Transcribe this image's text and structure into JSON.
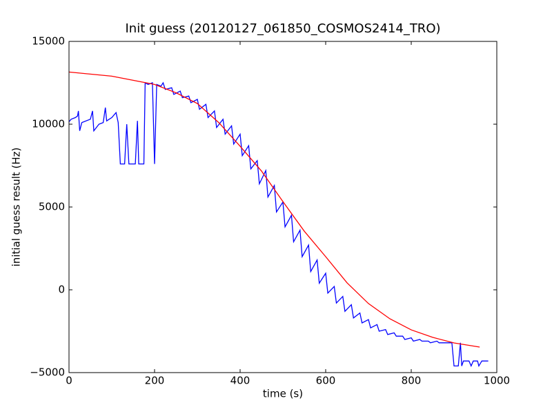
{
  "chart_data": {
    "type": "line",
    "title": "Init guess (20120127_061850_COSMOS2414_TRO)",
    "xlabel": "time (s)",
    "ylabel": "initial guess result (Hz)",
    "xlim": [
      0,
      1000
    ],
    "xticks": [
      0,
      200,
      400,
      600,
      800,
      1000
    ],
    "ylim": [
      -5000,
      15000
    ],
    "yticks": [
      {
        "value": -5000,
        "label": "−5000"
      },
      0,
      5000,
      10000,
      15000
    ],
    "grid": false,
    "series": [
      {
        "color": "#0000ff",
        "x": [
          0,
          5,
          15,
          20,
          22,
          25,
          30,
          50,
          55,
          58,
          70,
          80,
          85,
          88,
          100,
          110,
          115,
          120,
          130,
          135,
          140,
          155,
          160,
          163,
          175,
          178,
          185,
          195,
          200,
          205,
          215,
          220,
          225,
          240,
          245,
          260,
          265,
          280,
          285,
          300,
          305,
          320,
          325,
          340,
          345,
          360,
          365,
          380,
          385,
          400,
          405,
          420,
          425,
          440,
          445,
          460,
          465,
          480,
          485,
          500,
          505,
          520,
          525,
          540,
          545,
          560,
          565,
          580,
          585,
          600,
          605,
          620,
          625,
          640,
          645,
          660,
          665,
          680,
          685,
          700,
          705,
          720,
          725,
          740,
          745,
          760,
          765,
          780,
          785,
          800,
          805,
          820,
          825,
          840,
          845,
          860,
          865,
          880,
          895,
          900,
          910,
          915,
          918,
          922,
          935,
          940,
          945,
          955,
          958,
          965,
          980
        ],
        "values": [
          10150,
          10300,
          10400,
          10500,
          10800,
          9600,
          10100,
          10300,
          10800,
          9600,
          10000,
          10100,
          11000,
          10200,
          10400,
          10700,
          10100,
          7600,
          7600,
          10000,
          7600,
          7600,
          10200,
          7600,
          7600,
          12500,
          12400,
          12500,
          7600,
          12400,
          12300,
          12500,
          12100,
          12200,
          11800,
          12000,
          11600,
          11700,
          11300,
          11500,
          10900,
          11200,
          10400,
          10800,
          9800,
          10300,
          9400,
          9900,
          8800,
          9400,
          8100,
          8700,
          7300,
          7800,
          6400,
          7200,
          5600,
          6300,
          4700,
          5300,
          3800,
          4500,
          2900,
          3600,
          2000,
          2700,
          1100,
          1800,
          400,
          1000,
          -200,
          200,
          -800,
          -400,
          -1300,
          -900,
          -1700,
          -1400,
          -2000,
          -1800,
          -2300,
          -2100,
          -2500,
          -2400,
          -2700,
          -2600,
          -2800,
          -2800,
          -3000,
          -2900,
          -3100,
          -3000,
          -3100,
          -3100,
          -3200,
          -3100,
          -3200,
          -3200,
          -3200,
          -4600,
          -4600,
          -3200,
          -4600,
          -4300,
          -4300,
          -4600,
          -4300,
          -4300,
          -4600,
          -4300,
          -4300
        ]
      },
      {
        "color": "#ff0000",
        "x": [
          0,
          100,
          200,
          250,
          300,
          350,
          400,
          450,
          500,
          550,
          600,
          650,
          700,
          750,
          800,
          850,
          900,
          960
        ],
        "values": [
          13150,
          12900,
          12400,
          11900,
          11250,
          10100,
          8670,
          7170,
          5330,
          3540,
          2000,
          420,
          -830,
          -1750,
          -2420,
          -2870,
          -3210,
          -3460
        ]
      }
    ]
  }
}
